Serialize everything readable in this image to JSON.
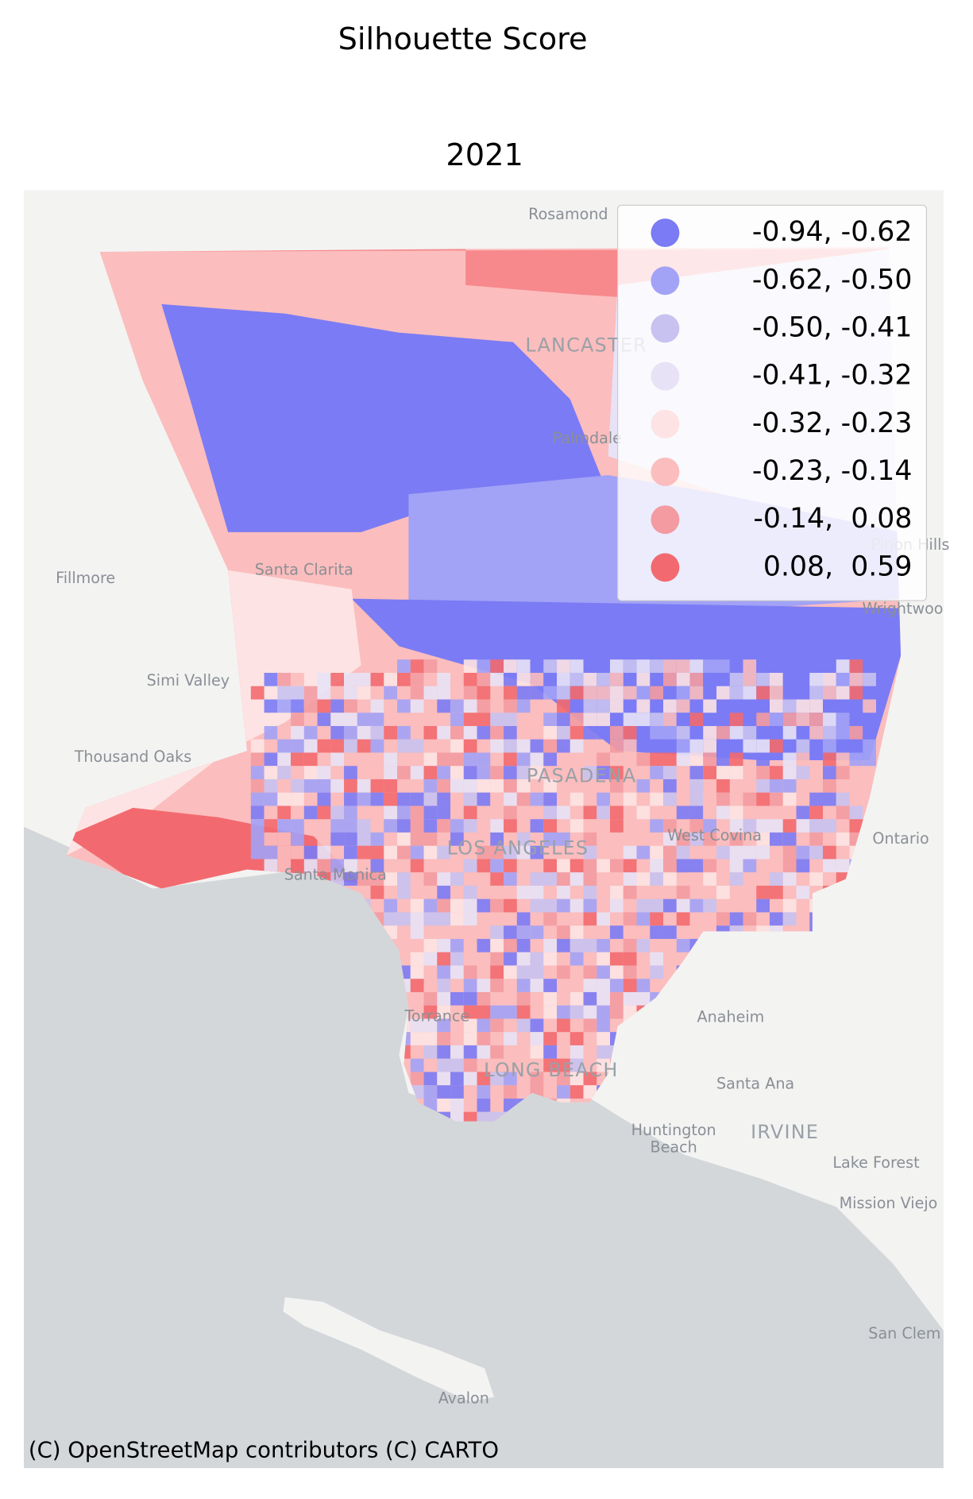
{
  "title": "Silhouette Score",
  "subtitle": "2021",
  "attribution": "(C) OpenStreetMap contributors (C) CARTO",
  "legend": [
    {
      "label": "-0.94, -0.62",
      "color": "#7b7bf5"
    },
    {
      "label": "-0.62, -0.50",
      "color": "#a2a2f6"
    },
    {
      "label": "-0.50, -0.41",
      "color": "#c8c2f0"
    },
    {
      "label": "-0.41, -0.32",
      "color": "#e7e2f6"
    },
    {
      "label": "-0.32, -0.23",
      "color": "#fde3e3"
    },
    {
      "label": "-0.23, -0.14",
      "color": "#fbbdbd"
    },
    {
      "label": "-0.14,  0.08",
      "color": "#f39ba1"
    },
    {
      "label": " 0.08,  0.59",
      "color": "#f26a6f"
    }
  ],
  "places": [
    "Rosamond",
    "LANCASTER",
    "Palmdale",
    "Santa Clarita",
    "Fillmore",
    "Simi Valley",
    "Thousand Oaks",
    "PASADENA",
    "LOS ANGELES",
    "Santa Monica",
    "West Covina",
    "Ontario",
    "Torrance",
    "LONG BEACH",
    "Anaheim",
    "Santa Ana",
    "Huntington",
    "Beach",
    "IRVINE",
    "Lake Forest",
    "Mission Viejo",
    "San Clem",
    "Avalon",
    "Wrightwoo",
    "Pinon Hills"
  ]
}
